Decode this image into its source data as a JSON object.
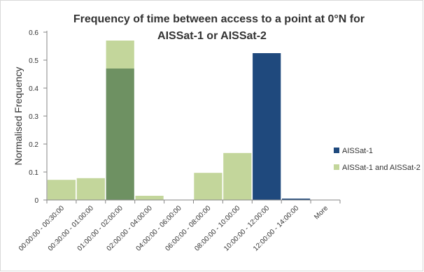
{
  "chart_data": {
    "type": "bar",
    "stacked": true,
    "title_lines": [
      "Frequency of time between access to a point at 0°N for",
      "AISSat-1 or AISSat-2"
    ],
    "xlabel": "",
    "ylabel": "Normalised Frequency",
    "ylim": [
      0,
      0.6
    ],
    "yticks": [
      0,
      0.1,
      0.2,
      0.3,
      0.4,
      0.5,
      0.6
    ],
    "grid": false,
    "legend_position": "right",
    "categories": [
      "00:00:00 - 00:30:00",
      "00:30:00 - 01:00:00",
      "01:00:00 - 02:00:00",
      "02:00:00 - 04:00:00",
      "04:00:00 - 06:00:00",
      "06:00:00 - 08:00:00",
      "08:00:00 - 10:00:00",
      "10:00:00 - 12:00:00",
      "12:00:00 - 14:00:00",
      "More"
    ],
    "series": [
      {
        "name": "AISSat-1",
        "color": "#1f497d",
        "values": [
          0,
          0,
          0.47,
          0,
          0,
          0,
          0,
          0.525,
          0.005,
          0
        ]
      },
      {
        "name": "AISSat-1 and AISSat-2",
        "color": "#c3d69b",
        "values": [
          0.072,
          0.078,
          0.1,
          0.015,
          0,
          0.097,
          0.168,
          0,
          0,
          0
        ]
      }
    ],
    "overlap_color": "#6e9162"
  }
}
